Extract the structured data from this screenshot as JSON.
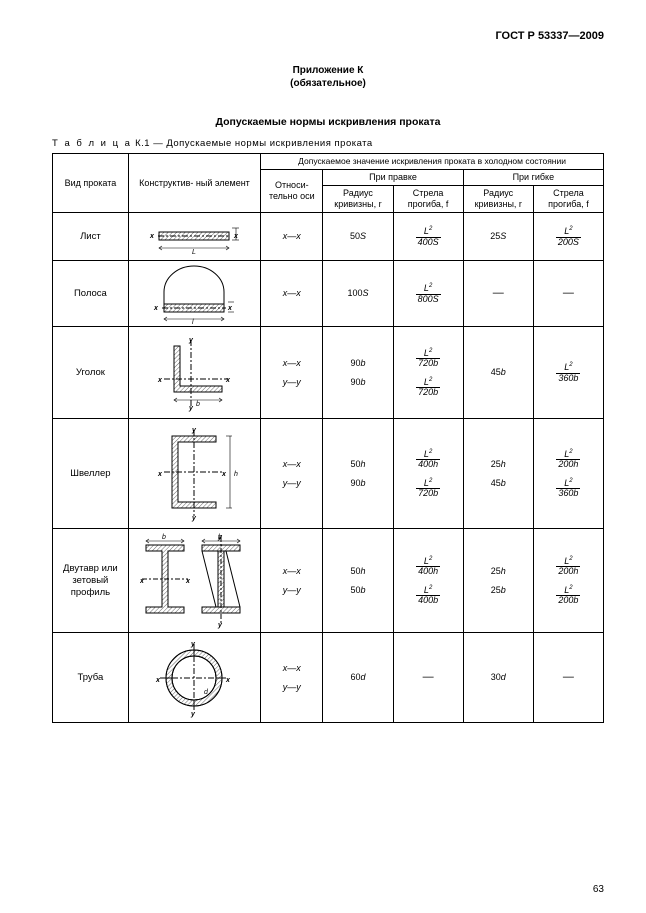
{
  "document": {
    "code": "ГОСТ Р 53337—2009",
    "appendix_line1": "Приложение К",
    "appendix_line2": "(обязательное)",
    "section_title": "Допускаемые нормы искривления проката",
    "table_caption_prefix": "Т а б л и ц а",
    "table_caption_rest": " К.1 — Допускаемые нормы искривления проката",
    "page_number": "63"
  },
  "headers": {
    "col_type": "Вид проката",
    "col_elem": "Конструктив- ный элемент",
    "group_top": "Допускаемое значение искривления проката в холодном состоянии",
    "axis": "Относи- тельно оси",
    "group_straight": "При правке",
    "group_bend": "При гибке",
    "radius": "Радиус кривизны, r",
    "arrow": "Стрела прогиба, f"
  },
  "rows": [
    {
      "name": "Лист",
      "diagram": "sheet",
      "axes": [
        "x—x"
      ],
      "straight_r": [
        "50S"
      ],
      "straight_f_num": [
        "L²"
      ],
      "straight_f_den": [
        "400S"
      ],
      "bend_r": [
        "25S"
      ],
      "bend_f_num": [
        "L²"
      ],
      "bend_f_den": [
        "200S"
      ]
    },
    {
      "name": "Полоса",
      "diagram": "strip",
      "axes": [
        "x—x"
      ],
      "straight_r": [
        "100S"
      ],
      "straight_f_num": [
        "L²"
      ],
      "straight_f_den": [
        "800S"
      ],
      "bend_r": [
        "—"
      ],
      "bend_f_num": [
        "—"
      ],
      "bend_f_den": [
        ""
      ]
    },
    {
      "name": "Уголок",
      "diagram": "angle",
      "axes": [
        "x—x",
        "y—y"
      ],
      "straight_r": [
        "90b",
        "90b"
      ],
      "straight_f_num": [
        "L²",
        "L²"
      ],
      "straight_f_den": [
        "720b",
        "720b"
      ],
      "bend_r": [
        "45b",
        ""
      ],
      "bend_f_num": [
        "L²",
        ""
      ],
      "bend_f_den": [
        "360b",
        ""
      ]
    },
    {
      "name": "Швеллер",
      "diagram": "channel",
      "axes": [
        "x—x",
        "y—y"
      ],
      "straight_r": [
        "50h",
        "90b"
      ],
      "straight_f_num": [
        "L²",
        "L²"
      ],
      "straight_f_den": [
        "400h",
        "720b"
      ],
      "bend_r": [
        "25h",
        "45b"
      ],
      "bend_f_num": [
        "L²",
        "L²"
      ],
      "bend_f_den": [
        "200h",
        "360b"
      ]
    },
    {
      "name": "Двутавр или зетовый профиль",
      "diagram": "ibeam",
      "axes": [
        "x—x",
        "y—y"
      ],
      "straight_r": [
        "50h",
        "50b"
      ],
      "straight_f_num": [
        "L²",
        "L²"
      ],
      "straight_f_den": [
        "400h",
        "400b"
      ],
      "bend_r": [
        "25h",
        "25b"
      ],
      "bend_f_num": [
        "L²",
        "L²"
      ],
      "bend_f_den": [
        "200h",
        "200b"
      ]
    },
    {
      "name": "Труба",
      "diagram": "tube",
      "axes": [
        "x—x",
        "y—y"
      ],
      "straight_r": [
        "60d",
        ""
      ],
      "straight_f_num": [
        "—",
        ""
      ],
      "straight_f_den": [
        "",
        ""
      ],
      "bend_r": [
        "30d",
        ""
      ],
      "bend_f_num": [
        "—",
        ""
      ],
      "bend_f_den": [
        "",
        ""
      ]
    }
  ],
  "style": {
    "stroke": "#000000",
    "stroke_width": 1,
    "hatch_spacing": 3
  }
}
